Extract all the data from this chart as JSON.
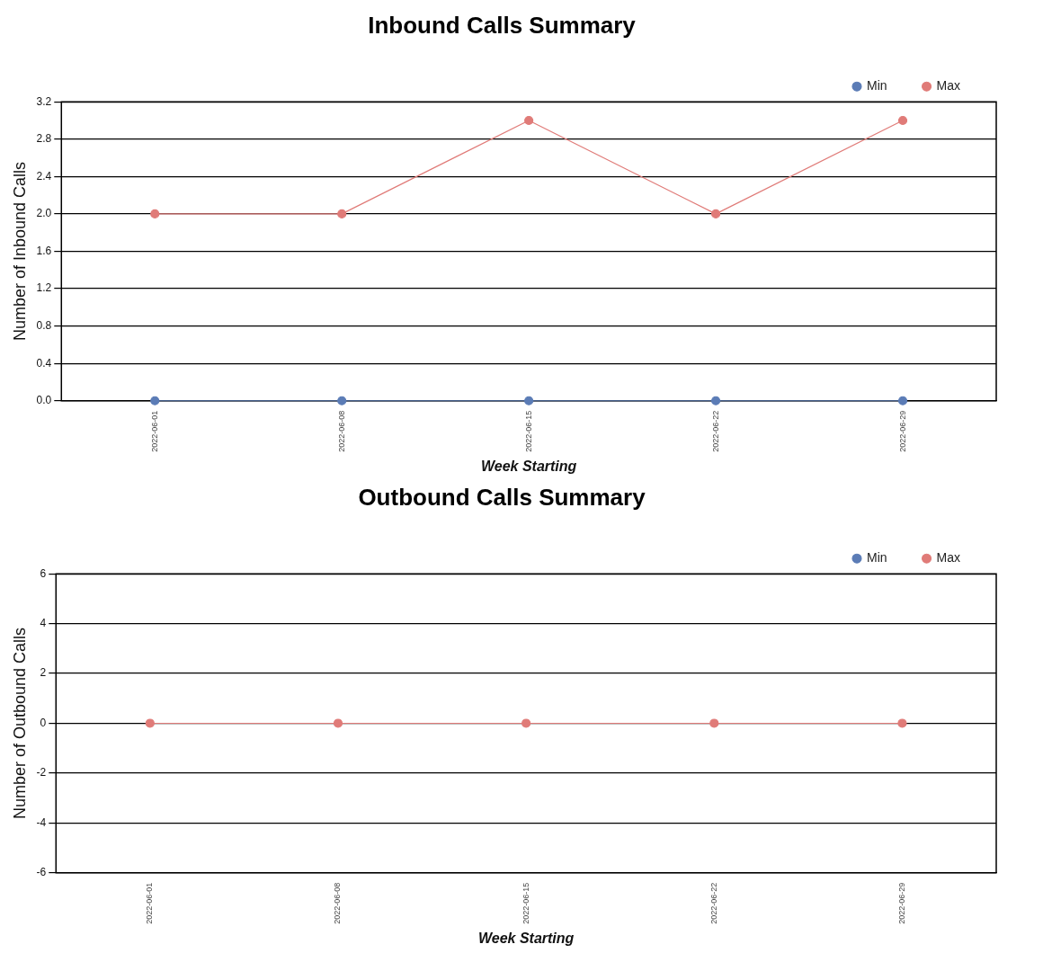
{
  "chart_data": [
    {
      "type": "line",
      "title": "Inbound Calls Summary",
      "xlabel": "Week Starting",
      "ylabel": "Number of Inbound Calls",
      "categories": [
        "2022-06-01",
        "2022-06-08",
        "2022-06-15",
        "2022-06-22",
        "2022-06-29"
      ],
      "series": [
        {
          "name": "Min",
          "color": "#5b7cb6",
          "values": [
            0,
            0,
            0,
            0,
            0
          ]
        },
        {
          "name": "Max",
          "color": "#e07b78",
          "values": [
            2,
            2,
            3,
            2,
            3
          ]
        }
      ],
      "ylim": [
        0,
        3.2
      ],
      "yticks": [
        {
          "value": 0,
          "label": "0.0"
        },
        {
          "value": 0.4,
          "label": "0.4"
        },
        {
          "value": 0.8,
          "label": "0.8"
        },
        {
          "value": 1.2,
          "label": "1.2"
        },
        {
          "value": 1.6,
          "label": "1.6"
        },
        {
          "value": 2,
          "label": "2.0"
        },
        {
          "value": 2.4,
          "label": "2.4"
        },
        {
          "value": 2.8,
          "label": "2.8"
        },
        {
          "value": 3.2,
          "label": "3.2"
        }
      ],
      "grid": "y",
      "legend": "top right",
      "marker": "circle"
    },
    {
      "type": "line",
      "title": "Outbound Calls Summary",
      "xlabel": "Week Starting",
      "ylabel": "Number of Outbound Calls",
      "categories": [
        "2022-06-01",
        "2022-06-08",
        "2022-06-15",
        "2022-06-22",
        "2022-06-29"
      ],
      "series": [
        {
          "name": "Min",
          "color": "#5b7cb6",
          "values": [
            null,
            null,
            null,
            null,
            null
          ]
        },
        {
          "name": "Max",
          "color": "#e07b78",
          "values": [
            0,
            0,
            0,
            0,
            0
          ]
        }
      ],
      "ylim": [
        -6,
        6
      ],
      "yticks": [
        -6,
        -4,
        -2,
        0,
        2,
        4,
        6
      ],
      "grid": "y",
      "legend": "top right",
      "marker": "circle"
    }
  ]
}
